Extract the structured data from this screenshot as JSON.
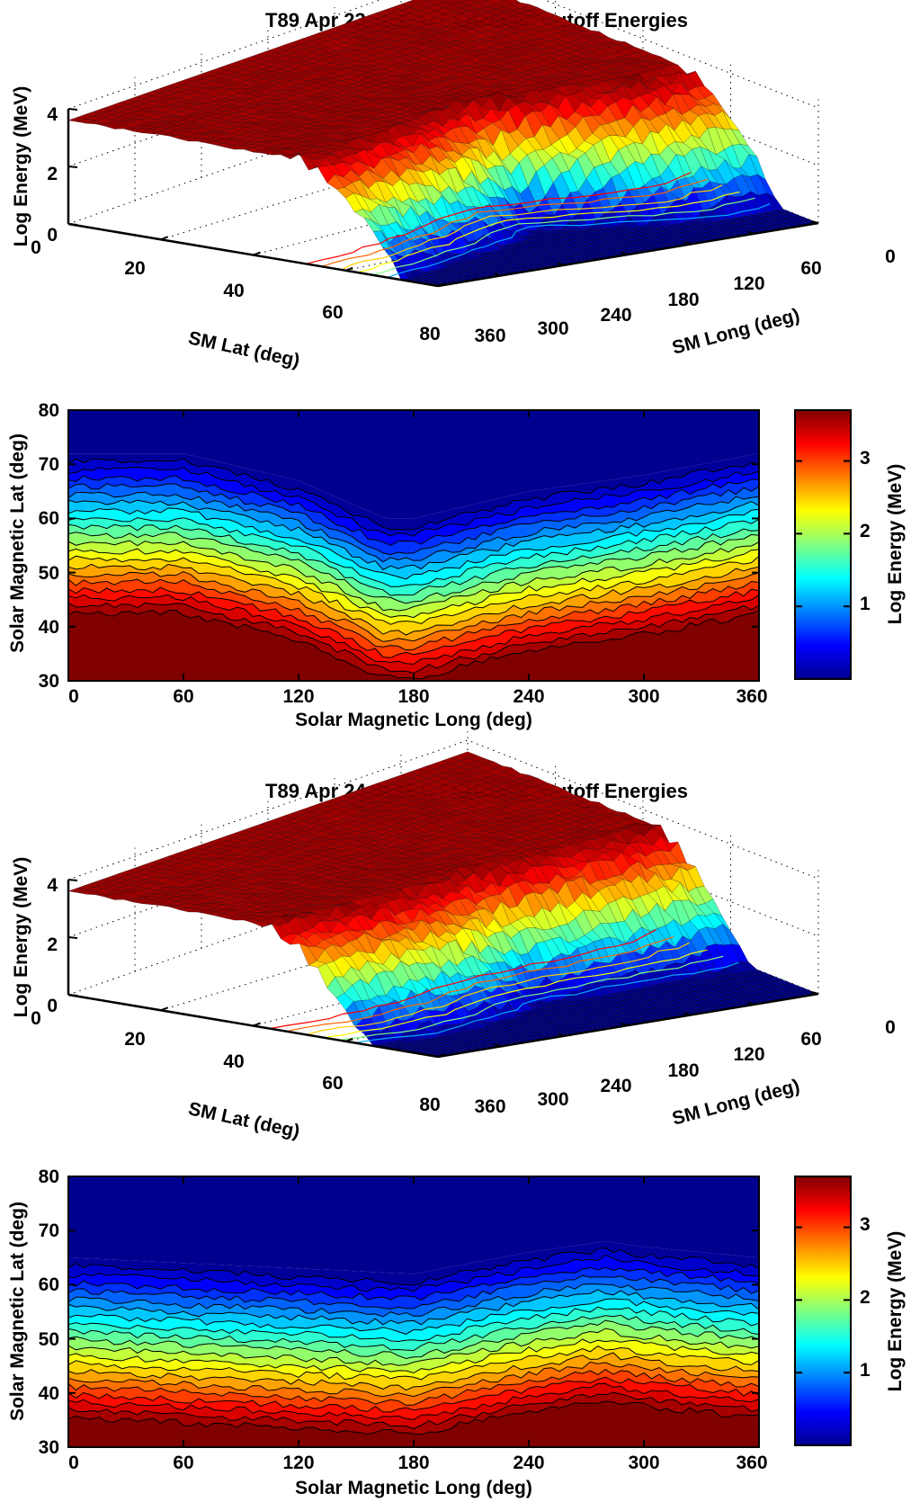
{
  "chart_data": [
    {
      "type": "surface",
      "title": "T89 Apr 23 1607 UT Effective Cutoff Energies",
      "zlabel": "Log Energy (MeV)",
      "xlabel": "SM Lat (deg)",
      "ylabel": "SM Long (deg)",
      "zticks": [
        "0",
        "2",
        "4"
      ],
      "lat_ticks": [
        "0",
        "20",
        "40",
        "60",
        "80"
      ],
      "long_ticks": [
        "360",
        "300",
        "240",
        "180",
        "120",
        "60",
        "0"
      ],
      "zlim": [
        0,
        4
      ],
      "lat_range": [
        0,
        80
      ],
      "long_range": [
        0,
        360
      ],
      "grid": true,
      "colormap": "jet",
      "surface_model": {
        "plateau_value": 3.6,
        "falloff_start_lat_by_long": [
          [
            0,
            48
          ],
          [
            60,
            49
          ],
          [
            120,
            45
          ],
          [
            180,
            41
          ],
          [
            240,
            44
          ],
          [
            300,
            47
          ],
          [
            360,
            48
          ]
        ],
        "falloff_end_lat_by_long": [
          [
            0,
            72
          ],
          [
            60,
            72
          ],
          [
            120,
            67
          ],
          [
            180,
            60
          ],
          [
            240,
            65
          ],
          [
            300,
            68
          ],
          [
            360,
            72
          ]
        ]
      }
    },
    {
      "type": "contour",
      "xlabel": "Solar Magnetic Long (deg)",
      "ylabel": "Solar Magnetic Lat (deg)",
      "xticks": [
        "0",
        "60",
        "120",
        "180",
        "240",
        "300",
        "360"
      ],
      "yticks": [
        "30",
        "40",
        "50",
        "60",
        "70",
        "80"
      ],
      "xlim": [
        0,
        360
      ],
      "ylim": [
        30,
        80
      ],
      "colorbar": {
        "label": "Log Energy (MeV)",
        "ticks": [
          "1",
          "2",
          "3"
        ],
        "range": [
          0,
          3.7
        ]
      },
      "colormap": "jet",
      "field_model": {
        "max_value": 3.65,
        "zero_level_lat_by_long": [
          [
            0,
            72
          ],
          [
            60,
            72
          ],
          [
            120,
            67
          ],
          [
            165,
            60
          ],
          [
            180,
            60
          ],
          [
            240,
            65
          ],
          [
            300,
            68
          ],
          [
            360,
            72
          ]
        ],
        "lat_per_energy_unit": 8.5
      }
    },
    {
      "type": "surface",
      "title": "T89 Apr 24 0648 UT Effective Cutoff Energies",
      "zlabel": "Log Energy (MeV)",
      "xlabel": "SM Lat (deg)",
      "ylabel": "SM Long (deg)",
      "zticks": [
        "0",
        "2",
        "4"
      ],
      "lat_ticks": [
        "0",
        "20",
        "40",
        "60",
        "80"
      ],
      "long_ticks": [
        "360",
        "300",
        "240",
        "180",
        "120",
        "60",
        "0"
      ],
      "zlim": [
        0,
        4
      ],
      "lat_range": [
        0,
        80
      ],
      "long_range": [
        0,
        360
      ],
      "grid": true,
      "colormap": "jet",
      "surface_model": {
        "plateau_value": 3.6,
        "falloff_start_lat_by_long": [
          [
            0,
            40
          ],
          [
            60,
            42
          ],
          [
            120,
            41
          ],
          [
            180,
            40
          ],
          [
            240,
            42
          ],
          [
            300,
            42
          ],
          [
            360,
            40
          ]
        ],
        "falloff_end_lat_by_long": [
          [
            0,
            65
          ],
          [
            60,
            64
          ],
          [
            120,
            63
          ],
          [
            180,
            62
          ],
          [
            240,
            66
          ],
          [
            300,
            68
          ],
          [
            360,
            65
          ]
        ]
      }
    },
    {
      "type": "contour",
      "xlabel": "Solar Magnetic Long (deg)",
      "ylabel": "Solar Magnetic Lat (deg)",
      "xticks": [
        "0",
        "60",
        "120",
        "180",
        "240",
        "300",
        "360"
      ],
      "yticks": [
        "30",
        "40",
        "50",
        "60",
        "70",
        "80"
      ],
      "xlim": [
        0,
        360
      ],
      "ylim": [
        30,
        80
      ],
      "colorbar": {
        "label": "Log Energy (MeV)",
        "ticks": [
          "1",
          "2",
          "3"
        ],
        "range": [
          0,
          3.7
        ]
      },
      "colormap": "jet",
      "field_model": {
        "max_value": 3.65,
        "zero_level_lat_by_long": [
          [
            0,
            65
          ],
          [
            60,
            64
          ],
          [
            120,
            63
          ],
          [
            180,
            62
          ],
          [
            240,
            66
          ],
          [
            280,
            68
          ],
          [
            300,
            67
          ],
          [
            360,
            65
          ]
        ],
        "lat_per_energy_unit": 8.5
      }
    }
  ]
}
